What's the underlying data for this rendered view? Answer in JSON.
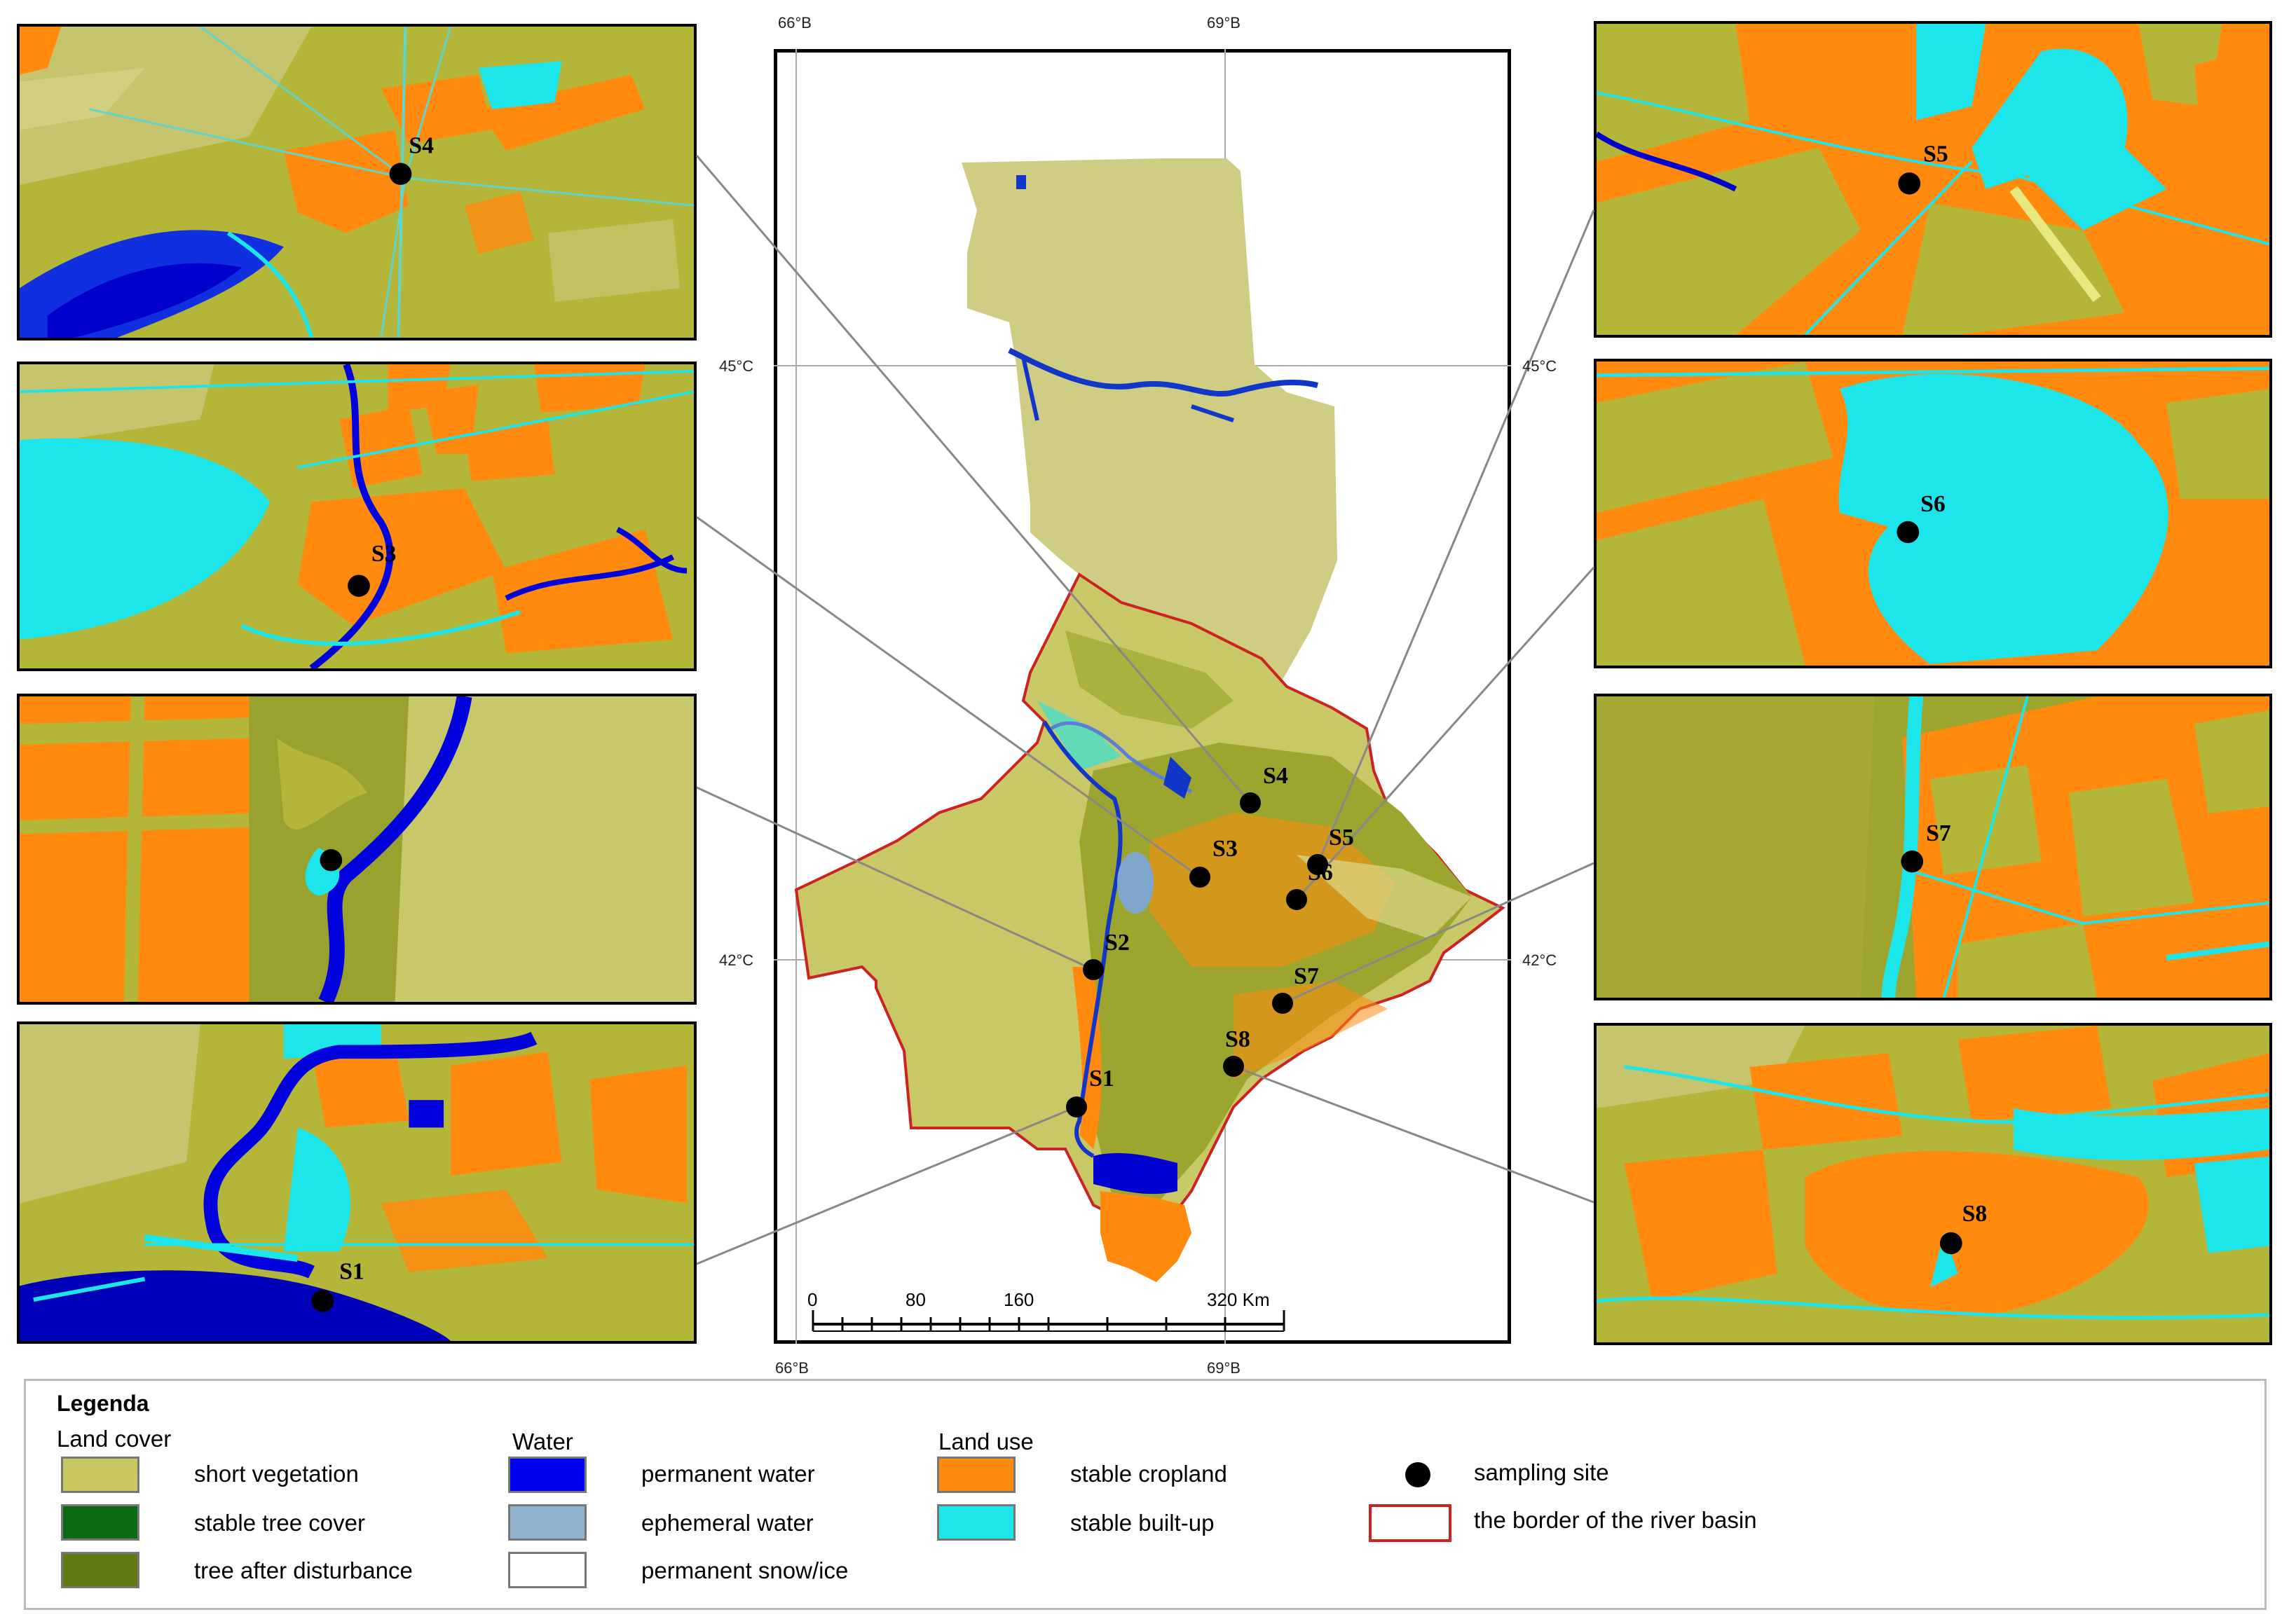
{
  "map": {
    "coords": {
      "top_left": "66°B",
      "top_mid": "69°B",
      "bottom_left": "66°B",
      "bottom_mid": "69°B",
      "left_upper": "45°C",
      "left_lower": "42°C",
      "right_upper": "45°C",
      "right_lower": "42°C"
    },
    "scale": {
      "t0": "0",
      "t1": "80",
      "t2": "160",
      "t3": "320 Km"
    },
    "sites": [
      "S1",
      "S2",
      "S3",
      "S4",
      "S5",
      "S6",
      "S7",
      "S8"
    ]
  },
  "insets": {
    "s4": "S4",
    "s3": "S3",
    "s1": "S1",
    "s5": "S5",
    "s6": "S6",
    "s7": "S7",
    "s8": "S8"
  },
  "legend": {
    "title": "Legenda",
    "land_cover": {
      "heading": "Land cover",
      "items": [
        {
          "label": "short vegetation",
          "color": "#c9c860"
        },
        {
          "label": "stable tree cover",
          "color": "#0b6b12"
        },
        {
          "label": "tree after disturbance",
          "color": "#617a12"
        }
      ]
    },
    "water": {
      "heading": "Water",
      "items": [
        {
          "label": "permanent water",
          "color": "#0000f0"
        },
        {
          "label": "ephemeral water",
          "color": "#8fb3cc"
        },
        {
          "label": "permanent snow/ice",
          "color": "#ffffff"
        }
      ]
    },
    "land_use": {
      "heading": "Land use",
      "items": [
        {
          "label": "stable cropland",
          "color": "#ff8a0d"
        },
        {
          "label": "stable built-up",
          "color": "#1de6ea"
        }
      ]
    },
    "symbols": {
      "sampling_site": "sampling site",
      "border": "the border of the river basin",
      "border_color": "#cc2222"
    }
  }
}
